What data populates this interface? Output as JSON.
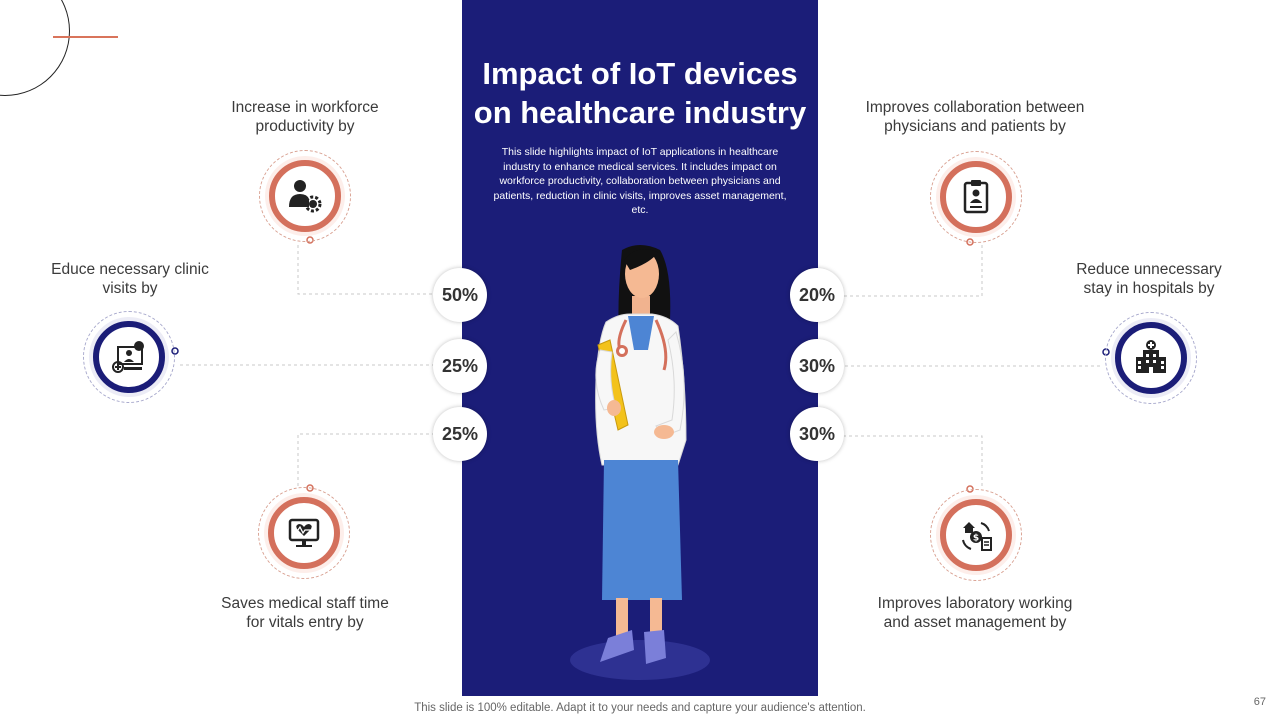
{
  "slide": {
    "title": "Impact of IoT devices on healthcare industry",
    "description": "This slide highlights impact of IoT applications in healthcare industry to enhance medical services. It includes impact on workforce productivity, collaboration between physicians and patients, reduction in clinic visits, improves asset management, etc.",
    "footer": "This slide is 100% editable. Adapt it to your needs and capture your audience's attention.",
    "page_number": "67"
  },
  "colors": {
    "panel": "#1b1d78",
    "accent": "#d4705c",
    "text": "#3b3b3b"
  },
  "left_items": [
    {
      "label": "Increase  in workforce productivity by",
      "value": "50%",
      "icon": "worker-gear-icon"
    },
    {
      "label": "Educe necessary clinic visits by",
      "value": "25%",
      "icon": "telemedicine-icon"
    },
    {
      "label": "Saves medical staff time for vitals entry by",
      "value": "25%",
      "icon": "heart-monitor-icon"
    }
  ],
  "right_items": [
    {
      "label": "Improves collaboration between physicians and patients by",
      "value": "20%",
      "icon": "clipboard-doctor-icon"
    },
    {
      "label": "Reduce unnecessary stay in hospitals by",
      "value": "30%",
      "icon": "hospital-building-icon"
    },
    {
      "label": "Improves laboratory working and asset management by",
      "value": "30%",
      "icon": "asset-cycle-icon"
    }
  ]
}
